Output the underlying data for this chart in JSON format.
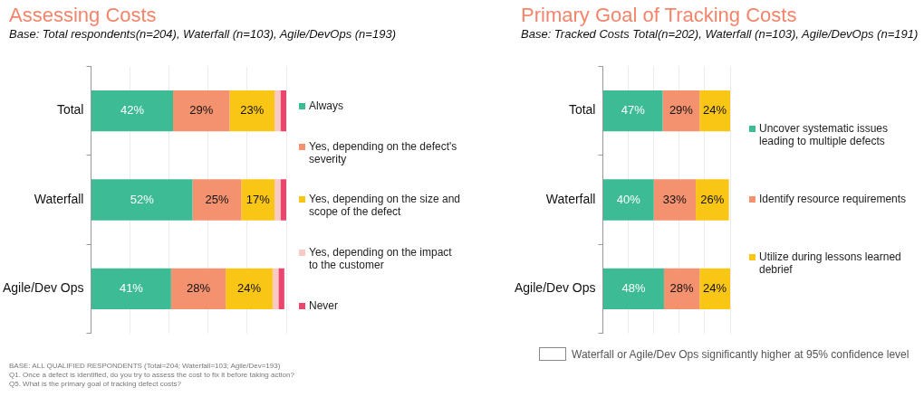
{
  "chart_data": [
    {
      "type": "bar",
      "title": "Assessing Costs",
      "subtitle": "Base: Total respondents(n=204), Waterfall (n=103), Agile/DevOps (n=193)",
      "orientation": "horizontal",
      "stacked": true,
      "categories": [
        "Total",
        "Waterfall",
        "Agile/Dev Ops"
      ],
      "xlim": [
        0,
        100
      ],
      "xticks": [
        {
          "value": 0,
          "label": null
        },
        {
          "value": 20,
          "label": null
        },
        {
          "value": 40,
          "label": null
        },
        {
          "value": 60,
          "label": null
        },
        {
          "value": 80,
          "label": null
        },
        {
          "value": 100,
          "label": null
        }
      ],
      "tick_labels": "y",
      "grid": "x",
      "legend": "right",
      "series": [
        {
          "name": "Always",
          "color": "#3dbb94",
          "values": [
            42,
            52,
            41
          ],
          "value_labels": [
            "42%",
            "52%",
            "41%"
          ]
        },
        {
          "name": "Yes, depending on the defect's severity",
          "color": "#f4916f",
          "values": [
            29,
            25,
            28
          ],
          "value_labels": [
            "29%",
            "25%",
            "28%"
          ]
        },
        {
          "name": "Yes, depending on the size and scope of the defect",
          "color": "#f9c616",
          "values": [
            23,
            17,
            24
          ],
          "value_labels": [
            "23%",
            "17%",
            "24%"
          ]
        },
        {
          "name": "Yes, depending on the impact to the customer",
          "color": "#f9c9c4",
          "values": [
            3,
            3,
            3
          ],
          "value_labels": [
            null,
            null,
            null
          ]
        },
        {
          "name": "Never",
          "color": "#e8466c",
          "values": [
            3,
            3,
            3
          ],
          "value_labels": [
            null,
            null,
            null
          ]
        }
      ],
      "annotations": [
        "BASE: ALL QUALIFIED RESPONDENTS (Total=204; Waterfall=103; Agile/Dev=193)",
        "Q1. Once a defect is identified, do you try to assess the cost to fix it before taking action?",
        "Q5. What is the primary goal of tracking defect costs?"
      ]
    },
    {
      "type": "bar",
      "title": "Primary Goal of Tracking Costs",
      "subtitle": "Base: Tracked Costs Total(n=202), Waterfall (n=103), Agile/DevOps (n=191)",
      "orientation": "horizontal",
      "stacked": true,
      "categories": [
        "Total",
        "Waterfall",
        "Agile/Dev Ops"
      ],
      "xlim": [
        0,
        100
      ],
      "xticks": [
        {
          "value": 0,
          "label": null
        },
        {
          "value": 20,
          "label": null
        },
        {
          "value": 40,
          "label": null
        },
        {
          "value": 60,
          "label": null
        },
        {
          "value": 80,
          "label": null
        },
        {
          "value": 100,
          "label": null
        }
      ],
      "tick_labels": "y",
      "grid": "x",
      "legend": "right",
      "series": [
        {
          "name": "Uncover systematic issues leading to multiple defects",
          "color": "#3dbb94",
          "values": [
            47,
            40,
            48
          ],
          "value_labels": [
            "47%",
            "40%",
            "48%"
          ]
        },
        {
          "name": "Identify resource requirements",
          "color": "#f4916f",
          "values": [
            29,
            33,
            28
          ],
          "value_labels": [
            "29%",
            "33%",
            "28%"
          ]
        },
        {
          "name": "Utilize during lessons learned debrief",
          "color": "#f9c616",
          "values": [
            24,
            26,
            24
          ],
          "value_labels": [
            "24%",
            "26%",
            "24%"
          ]
        }
      ],
      "annotations": [
        "Waterfall or Agile/Dev Ops significantly higher at 95% confidence level"
      ]
    }
  ]
}
